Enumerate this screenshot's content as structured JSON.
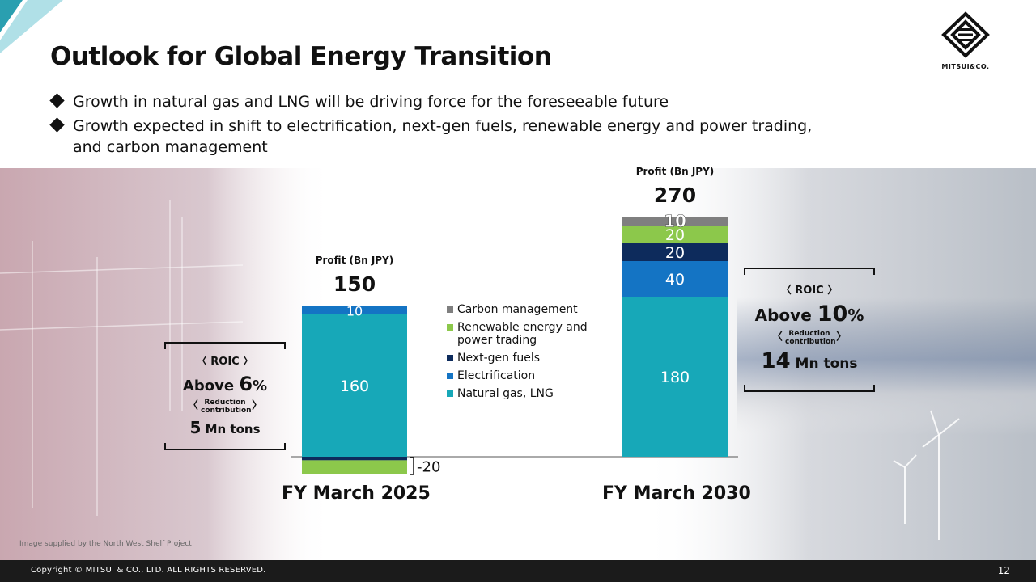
{
  "title": "Outlook for Global Energy Transition",
  "logo": {
    "text": "MITSUI&CO.",
    "icon": "mitsui-logo-icon"
  },
  "bullets": [
    "Growth in natural gas and LNG will be driving force for the foreseeable future",
    "Growth expected in shift to electrification, next-gen fuels, renewable energy and power trading, and carbon management"
  ],
  "image_caption": "Image supplied by the North West Shelf Project",
  "footer": {
    "copyright": "Copyright © MITSUI & CO., LTD. ALL RIGHTS RESERVED.",
    "page": "12"
  },
  "colors": {
    "natural_gas": "#17a8b8",
    "electrification": "#1474c4",
    "next_gen": "#0d2b5c",
    "renewable": "#8cc84b",
    "carbon": "#7f7f7f"
  },
  "legend": [
    "Carbon management",
    "Renewable energy and power trading",
    "Next-gen fuels",
    "Electrification",
    "Natural gas, LNG"
  ],
  "cards": [
    {
      "roic_label": "ROIC",
      "above_prefix": "Above ",
      "above_value": "6",
      "above_unit": "%",
      "reduction_label": "Reduction contribution",
      "tons_value": "5",
      "tons_unit": " Mn tons"
    },
    {
      "roic_label": "ROIC",
      "above_prefix": "Above ",
      "above_value": "10",
      "above_unit": "%",
      "reduction_label": "Reduction contribution",
      "tons_value": "14",
      "tons_unit": " Mn tons"
    }
  ],
  "chart_data": {
    "type": "bar",
    "stacked": true,
    "categories": [
      "FY March 2025",
      "FY March 2030"
    ],
    "totals": [
      150,
      270
    ],
    "total_label": "Profit (Bn JPY)",
    "negative_label": "-20",
    "series": [
      {
        "name": "Natural gas, LNG",
        "values": [
          160,
          180
        ],
        "labels": [
          "160",
          "180"
        ]
      },
      {
        "name": "Electrification",
        "values": [
          10,
          40
        ],
        "labels": [
          "10",
          "40"
        ]
      },
      {
        "name": "Next-gen fuels",
        "values": [
          -4,
          20
        ],
        "labels": [
          "",
          "20"
        ]
      },
      {
        "name": "Renewable energy and power trading",
        "values": [
          -16,
          20
        ],
        "labels": [
          "",
          "20"
        ]
      },
      {
        "name": "Carbon management",
        "values": [
          0,
          10
        ],
        "labels": [
          "",
          "10"
        ]
      }
    ]
  }
}
